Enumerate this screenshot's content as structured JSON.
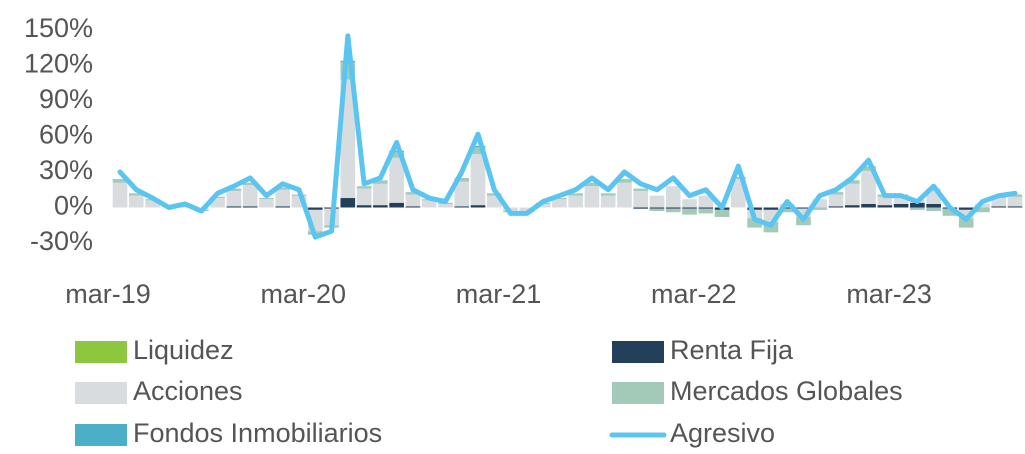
{
  "chart_data": {
    "type": "stacked-bar-line",
    "categories": [
      "mar-19",
      null,
      null,
      null,
      null,
      null,
      null,
      null,
      null,
      null,
      null,
      null,
      "mar-20",
      null,
      null,
      null,
      null,
      null,
      null,
      null,
      null,
      null,
      null,
      null,
      "mar-21",
      null,
      null,
      null,
      null,
      null,
      null,
      null,
      null,
      null,
      null,
      null,
      "mar-22",
      null,
      null,
      null,
      null,
      null,
      null,
      null,
      null,
      null,
      null,
      null,
      "mar-23",
      null,
      null,
      null,
      null,
      null,
      null,
      null
    ],
    "ylim": [
      -30,
      150
    ],
    "yticks": [
      {
        "value": -30,
        "label": "-30%"
      },
      {
        "value": 0,
        "label": "0%"
      },
      {
        "value": 30,
        "label": "30%"
      },
      {
        "value": 60,
        "label": "60%"
      },
      {
        "value": 90,
        "label": "90%"
      },
      {
        "value": 120,
        "label": "120%"
      },
      {
        "value": 150,
        "label": "150%"
      }
    ],
    "grid": false,
    "legend": "bottom",
    "series": [
      {
        "name": "Liquidez",
        "color": "#8dc63f",
        "kind": "bar",
        "values": [
          0,
          0,
          0,
          0,
          0,
          0,
          0,
          0,
          0,
          0,
          0,
          0,
          0,
          0,
          0,
          0,
          0,
          0,
          0,
          0,
          0,
          0,
          0,
          0,
          0,
          0,
          0,
          0,
          0,
          0,
          0,
          0,
          0,
          0,
          0,
          0,
          0,
          0,
          0,
          0,
          0,
          0,
          0,
          0,
          0,
          0,
          0,
          0,
          0,
          0,
          0,
          0,
          0,
          0,
          0,
          0
        ]
      },
      {
        "name": "Renta Fija",
        "color": "#243f5a",
        "kind": "bar",
        "values": [
          0,
          0,
          0,
          0,
          0,
          0,
          0,
          1,
          1,
          0,
          1,
          0,
          -2,
          -1,
          8,
          2,
          2,
          4,
          1,
          0,
          0,
          1,
          2,
          0,
          0,
          0,
          0,
          0,
          0,
          0,
          0,
          0,
          -1,
          -1,
          -1,
          -1,
          -1,
          -2,
          0,
          -2,
          -2,
          -1,
          -1,
          0,
          1,
          2,
          3,
          2,
          3,
          4,
          3,
          -1,
          -2,
          0,
          1,
          1
        ]
      },
      {
        "name": "Acciones",
        "color": "#d9dcdf",
        "kind": "bar",
        "values": [
          21,
          10,
          6,
          0,
          2,
          -2,
          8,
          13,
          18,
          7,
          14,
          10,
          -18,
          -14,
          100,
          14,
          18,
          38,
          10,
          6,
          3,
          21,
          43,
          10,
          -3,
          -3,
          3,
          7,
          10,
          18,
          10,
          21,
          14,
          10,
          18,
          7,
          10,
          0,
          24,
          -7,
          -10,
          3,
          -7,
          7,
          10,
          18,
          28,
          7,
          7,
          3,
          13,
          0,
          -7,
          3,
          7,
          8
        ]
      },
      {
        "name": "Mercados Globales",
        "color": "#a3c9b8",
        "kind": "bar",
        "values": [
          3,
          2,
          1,
          0,
          0,
          -1,
          1,
          2,
          2,
          1,
          2,
          1,
          -3,
          -2,
          15,
          2,
          3,
          5,
          2,
          1,
          1,
          3,
          6,
          2,
          -1,
          -1,
          1,
          1,
          2,
          3,
          2,
          3,
          2,
          -2,
          -3,
          -5,
          -4,
          -6,
          2,
          -8,
          -9,
          -3,
          -7,
          -2,
          2,
          3,
          4,
          2,
          1,
          -2,
          -3,
          -6,
          -8,
          -4,
          1,
          2
        ]
      },
      {
        "name": "Fondos Inmobiliarios",
        "color": "#4bafc8",
        "kind": "bar",
        "values": [
          0,
          0,
          0,
          0,
          0,
          0,
          0,
          0,
          0,
          0,
          0,
          0,
          0,
          0,
          1,
          0,
          0,
          1,
          0,
          0,
          0,
          0,
          1,
          0,
          0,
          0,
          0,
          0,
          0,
          0,
          0,
          0,
          0,
          0,
          0,
          0,
          0,
          0,
          0,
          0,
          0,
          0,
          0,
          0,
          0,
          0,
          0,
          0,
          0,
          0,
          0,
          0,
          0,
          0,
          0,
          0
        ]
      },
      {
        "name": "Agresivo",
        "color": "#5bc5f2",
        "kind": "line",
        "values": [
          30,
          15,
          8,
          0,
          3,
          -3,
          12,
          18,
          25,
          10,
          20,
          15,
          -25,
          -20,
          145,
          20,
          25,
          55,
          15,
          8,
          5,
          30,
          62,
          15,
          -5,
          -5,
          5,
          10,
          15,
          25,
          15,
          30,
          20,
          15,
          25,
          10,
          15,
          0,
          35,
          -10,
          -15,
          5,
          -10,
          10,
          15,
          25,
          40,
          10,
          10,
          5,
          18,
          0,
          -10,
          5,
          10,
          12
        ]
      }
    ]
  }
}
